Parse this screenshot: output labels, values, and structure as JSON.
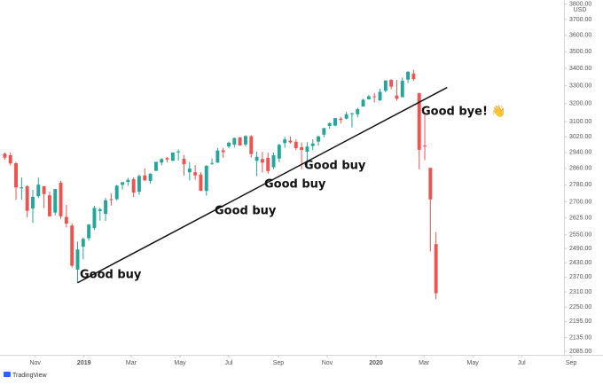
{
  "chart_data": {
    "type": "candlestick",
    "log_scale": true,
    "currency": "USD",
    "up_color": "#26a69a",
    "down_color": "#ef5350",
    "xlim": [
      "2018-09-18",
      "2020-08-23"
    ],
    "ylim": [
      2072,
      3827
    ],
    "yticks": [
      {
        "value": 3800,
        "label": "3800.00"
      },
      {
        "value": 3700,
        "label": "3700.00"
      },
      {
        "value": 3600,
        "label": "3600.00"
      },
      {
        "value": 3500,
        "label": "3500.00"
      },
      {
        "value": 3400,
        "label": "3400.00"
      },
      {
        "value": 3300,
        "label": "3300.00"
      },
      {
        "value": 3200,
        "label": "3200.00"
      },
      {
        "value": 3100,
        "label": "3100.00"
      },
      {
        "value": 3020,
        "label": "3020.00"
      },
      {
        "value": 2940,
        "label": "2940.00"
      },
      {
        "value": 2860,
        "label": "2860.00"
      },
      {
        "value": 2780,
        "label": "2780.00"
      },
      {
        "value": 2700,
        "label": "2700.00"
      },
      {
        "value": 2625,
        "label": "2625.00"
      },
      {
        "value": 2550,
        "label": "2550.00"
      },
      {
        "value": 2490,
        "label": "2490.00"
      },
      {
        "value": 2430,
        "label": "2430.00"
      },
      {
        "value": 2370,
        "label": "2370.00"
      },
      {
        "value": 2310,
        "label": "2310.00"
      },
      {
        "value": 2250,
        "label": "2250.00"
      },
      {
        "value": 2195,
        "label": "2195.00"
      },
      {
        "value": 2135,
        "label": "2135.00"
      },
      {
        "value": 2085,
        "label": "2085.00"
      }
    ],
    "xticks": [
      {
        "value": "2018-11-01",
        "label": "Nov"
      },
      {
        "value": "2019-01-01",
        "label": "2019"
      },
      {
        "value": "2019-03-01",
        "label": "Mar"
      },
      {
        "value": "2019-05-01",
        "label": "May"
      },
      {
        "value": "2019-07-01",
        "label": "Jul"
      },
      {
        "value": "2019-09-01",
        "label": "Sep"
      },
      {
        "value": "2019-11-01",
        "label": "Nov"
      },
      {
        "value": "2020-01-01",
        "label": "2020"
      },
      {
        "value": "2020-03-01",
        "label": "Mar"
      },
      {
        "value": "2020-05-01",
        "label": "May"
      },
      {
        "value": "2020-07-01",
        "label": "Jul"
      },
      {
        "value": "2020-09-01",
        "label": "Sep"
      }
    ],
    "x": [
      "2018-09-24",
      "2018-10-01",
      "2018-10-08",
      "2018-10-15",
      "2018-10-22",
      "2018-10-29",
      "2018-11-05",
      "2018-11-12",
      "2018-11-19",
      "2018-11-26",
      "2018-12-03",
      "2018-12-10",
      "2018-12-17",
      "2018-12-24",
      "2018-12-31",
      "2019-01-07",
      "2019-01-14",
      "2019-01-21",
      "2019-01-28",
      "2019-02-04",
      "2019-02-11",
      "2019-02-18",
      "2019-02-25",
      "2019-03-04",
      "2019-03-11",
      "2019-03-18",
      "2019-03-25",
      "2019-04-01",
      "2019-04-08",
      "2019-04-15",
      "2019-04-22",
      "2019-04-29",
      "2019-05-06",
      "2019-05-13",
      "2019-05-20",
      "2019-05-27",
      "2019-06-03",
      "2019-06-10",
      "2019-06-17",
      "2019-06-24",
      "2019-07-01",
      "2019-07-08",
      "2019-07-15",
      "2019-07-22",
      "2019-07-29",
      "2019-08-05",
      "2019-08-12",
      "2019-08-19",
      "2019-08-26",
      "2019-09-02",
      "2019-09-09",
      "2019-09-16",
      "2019-09-23",
      "2019-09-30",
      "2019-10-07",
      "2019-10-14",
      "2019-10-21",
      "2019-10-28",
      "2019-11-04",
      "2019-11-11",
      "2019-11-18",
      "2019-11-25",
      "2019-12-02",
      "2019-12-09",
      "2019-12-16",
      "2019-12-23",
      "2019-12-30",
      "2020-01-06",
      "2020-01-13",
      "2020-01-20",
      "2020-01-27",
      "2020-02-03",
      "2020-02-10",
      "2020-02-17",
      "2020-02-24",
      "2020-03-02",
      "2020-03-09",
      "2020-03-16"
    ],
    "open": [
      2934,
      2926,
      2886,
      2763,
      2773,
      2669,
      2726,
      2773,
      2730,
      2650,
      2790,
      2630,
      2591,
      2401,
      2498,
      2535,
      2580,
      2657,
      2644,
      2712,
      2712,
      2780,
      2794,
      2807,
      2747,
      2826,
      2799,
      2848,
      2889,
      2912,
      2898,
      2941,
      2908,
      2841,
      2841,
      2830,
      2751,
      2886,
      2889,
      2951,
      2971,
      2980,
      3018,
      2981,
      3024,
      2898,
      2907,
      2913,
      2866,
      2909,
      2988,
      3001,
      2995,
      2967,
      2944,
      2973,
      2996,
      3032,
      3078,
      3080,
      3117,
      3117,
      3144,
      3141,
      3183,
      3223,
      3240,
      3218,
      3271,
      3333,
      3244,
      3235,
      3335,
      3369,
      3257,
      2975,
      2863,
      2509
    ],
    "high": [
      2940,
      2940,
      2892,
      2816,
      2779,
      2756,
      2815,
      2775,
      2747,
      2760,
      2800,
      2685,
      2601,
      2520,
      2538,
      2597,
      2681,
      2672,
      2718,
      2739,
      2780,
      2792,
      2814,
      2816,
      2830,
      2861,
      2836,
      2893,
      2911,
      2916,
      2940,
      2955,
      2927,
      2892,
      2877,
      2841,
      2876,
      2910,
      2964,
      2964,
      2996,
      3017,
      3019,
      3028,
      3029,
      2944,
      2943,
      2939,
      2940,
      2985,
      3021,
      3022,
      3007,
      2992,
      2993,
      3008,
      3027,
      3067,
      3097,
      3120,
      3127,
      3154,
      3150,
      3176,
      3226,
      3247,
      3259,
      3282,
      3330,
      3338,
      3333,
      3347,
      3385,
      3393,
      3260,
      3137,
      2863,
      2562
    ],
    "low": [
      2903,
      2874,
      2710,
      2710,
      2628,
      2603,
      2717,
      2670,
      2631,
      2636,
      2621,
      2583,
      2409,
      2347,
      2444,
      2524,
      2571,
      2613,
      2612,
      2682,
      2705,
      2758,
      2775,
      2722,
      2733,
      2800,
      2785,
      2848,
      2875,
      2891,
      2898,
      2900,
      2825,
      2801,
      2805,
      2750,
      2729,
      2878,
      2887,
      2913,
      2963,
      2966,
      2975,
      2970,
      2914,
      2822,
      2840,
      2834,
      2856,
      2891,
      2964,
      2985,
      2952,
      2856,
      2874,
      2952,
      2975,
      3019,
      3064,
      3076,
      3091,
      3113,
      3070,
      3124,
      3183,
      3222,
      3205,
      3214,
      3263,
      3280,
      3215,
      3235,
      3315,
      3328,
      2856,
      2901,
      2478,
      2281
    ],
    "close": [
      2914,
      2885,
      2767,
      2768,
      2658,
      2723,
      2781,
      2736,
      2633,
      2760,
      2633,
      2600,
      2417,
      2486,
      2532,
      2596,
      2671,
      2665,
      2707,
      2708,
      2776,
      2793,
      2804,
      2743,
      2823,
      2801,
      2834,
      2893,
      2907,
      2905,
      2940,
      2946,
      2881,
      2860,
      2826,
      2752,
      2873,
      2887,
      2950,
      2942,
      2990,
      3014,
      2976,
      3025,
      2932,
      2918,
      2889,
      2847,
      2926,
      2979,
      3007,
      2992,
      2962,
      2953,
      2970,
      2986,
      3023,
      3067,
      3093,
      3120,
      3110,
      3141,
      3146,
      3169,
      3221,
      3240,
      3235,
      3265,
      3330,
      3295,
      3226,
      3328,
      3380,
      3338,
      2954,
      2972,
      2711,
      2305
    ],
    "trendline": {
      "x": [
        "2018-12-24",
        "2020-03-30"
      ],
      "y": [
        2347,
        3290
      ]
    },
    "annotations": [
      "Good buy",
      "Good buy",
      "Good buy",
      "Good buy",
      "Good bye! 👋"
    ],
    "footer": "TradingView"
  }
}
